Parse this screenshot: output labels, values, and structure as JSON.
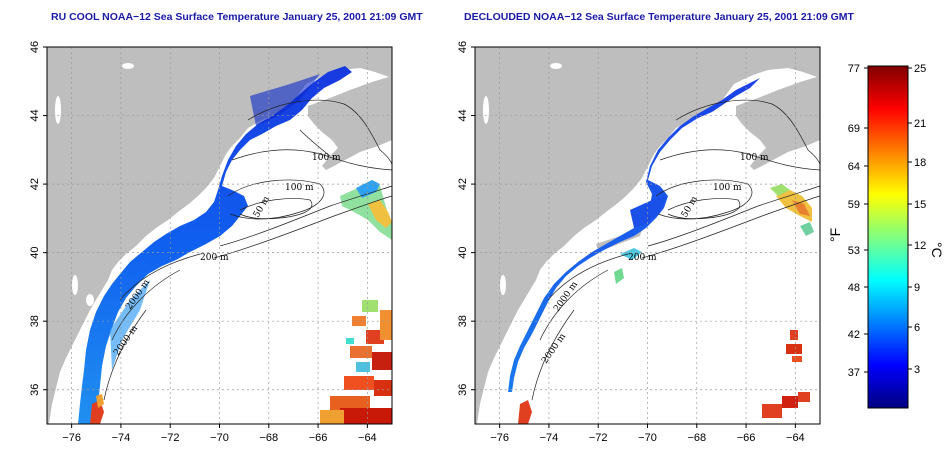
{
  "panels": [
    {
      "title": "RU COOL NOAA−12 Sea Surface Temperature January 25, 2001 21:09 GMT",
      "type": "raw"
    },
    {
      "title": "DECLOUDED NOAA−12 Sea Surface Temperature January 25, 2001 21:09 GMT",
      "type": "declouded"
    }
  ],
  "map": {
    "lon_range": [
      -77,
      -63
    ],
    "lat_range": [
      35,
      46
    ],
    "x_ticks": [
      -76,
      -74,
      -72,
      -70,
      -68,
      -66,
      -64
    ],
    "y_ticks": [
      36,
      38,
      40,
      42,
      44,
      46
    ],
    "land_color": "#bebebe",
    "grid_color": "#9a9a9a",
    "contour_labels": {
      "left": [
        "100 m",
        "100 m",
        "50 m",
        "200 m",
        "2000 m",
        "2000 m"
      ],
      "right": [
        "100 m",
        "100 m",
        "50 m",
        "200 m",
        "2000 m",
        "2000 m"
      ]
    }
  },
  "colorbar": {
    "fahrenheit_ticks": [
      "77",
      "69",
      "64",
      "59",
      "53",
      "48",
      "42",
      "37"
    ],
    "celsius_ticks": [
      "25",
      "21",
      "18",
      "15",
      "12",
      "9",
      "6",
      "3"
    ],
    "f_unit": "°F",
    "c_unit": "°C",
    "colors": [
      "#000080",
      "#0000ff",
      "#0080ff",
      "#00ffff",
      "#80ff80",
      "#ffff00",
      "#ff8000",
      "#ff0000",
      "#800000"
    ]
  }
}
